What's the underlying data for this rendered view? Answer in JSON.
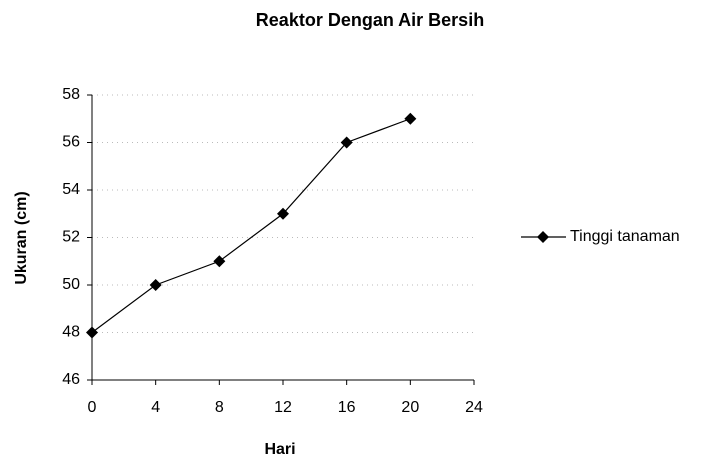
{
  "chart_data": {
    "type": "line",
    "title": "Reaktor Dengan Air Bersih",
    "xlabel": "Hari",
    "ylabel": "Ukuran (cm)",
    "x": [
      0,
      4,
      8,
      12,
      16,
      20
    ],
    "series": [
      {
        "name": "Tinggi tanaman",
        "color": "#000000",
        "values": [
          48,
          50,
          51,
          53,
          56,
          57
        ]
      }
    ],
    "xlim": [
      0,
      24
    ],
    "xticks": [
      0,
      4,
      8,
      12,
      16,
      20,
      24
    ],
    "ylim": [
      46,
      58
    ],
    "yticks": [
      46,
      48,
      50,
      52,
      54,
      56,
      58
    ],
    "grid": true,
    "legend": "right"
  }
}
